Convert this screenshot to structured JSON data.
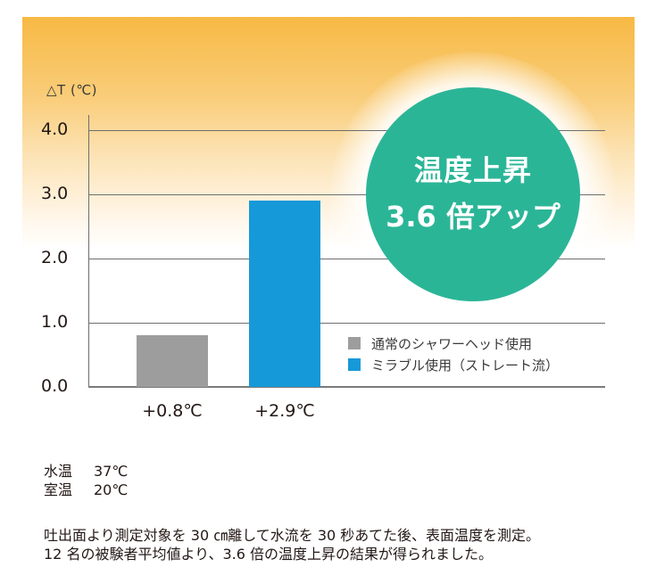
{
  "chart_data": {
    "type": "bar",
    "title": "",
    "ylabel": "△T (℃)",
    "xlabel": "",
    "ylim": [
      0,
      4.0
    ],
    "yticks": [
      "0.0",
      "1.0",
      "2.0",
      "3.0",
      "4.0"
    ],
    "grid": true,
    "categories": [
      "通常のシャワーヘッド使用",
      "ミラブル使用（ストレート流）"
    ],
    "values": [
      0.8,
      2.9
    ],
    "value_labels": [
      "+0.8℃",
      "+2.9℃"
    ],
    "colors": [
      "#9d9d9d",
      "#1699d8"
    ],
    "legend": [
      {
        "label": "通常のシャワーヘッド使用",
        "color": "#9d9d9d"
      },
      {
        "label": "ミラブル使用（ストレート流）",
        "color": "#1699d8"
      }
    ],
    "legend_position": "right-lower",
    "annotation": {
      "line1": "温度上昇",
      "line2": "3.6 倍アップ",
      "color": "#2bb597"
    }
  },
  "conditions": [
    {
      "key": "水温",
      "value": "37℃"
    },
    {
      "key": "室温",
      "value": "20℃"
    }
  ],
  "description": {
    "line1": "吐出面より測定対象を 30 ㎝離して水流を 30 秒あてた後、表面温度を測定。",
    "line2": "12 名の被験者平均値より、3.6 倍の温度上昇の結果が得られました。"
  }
}
